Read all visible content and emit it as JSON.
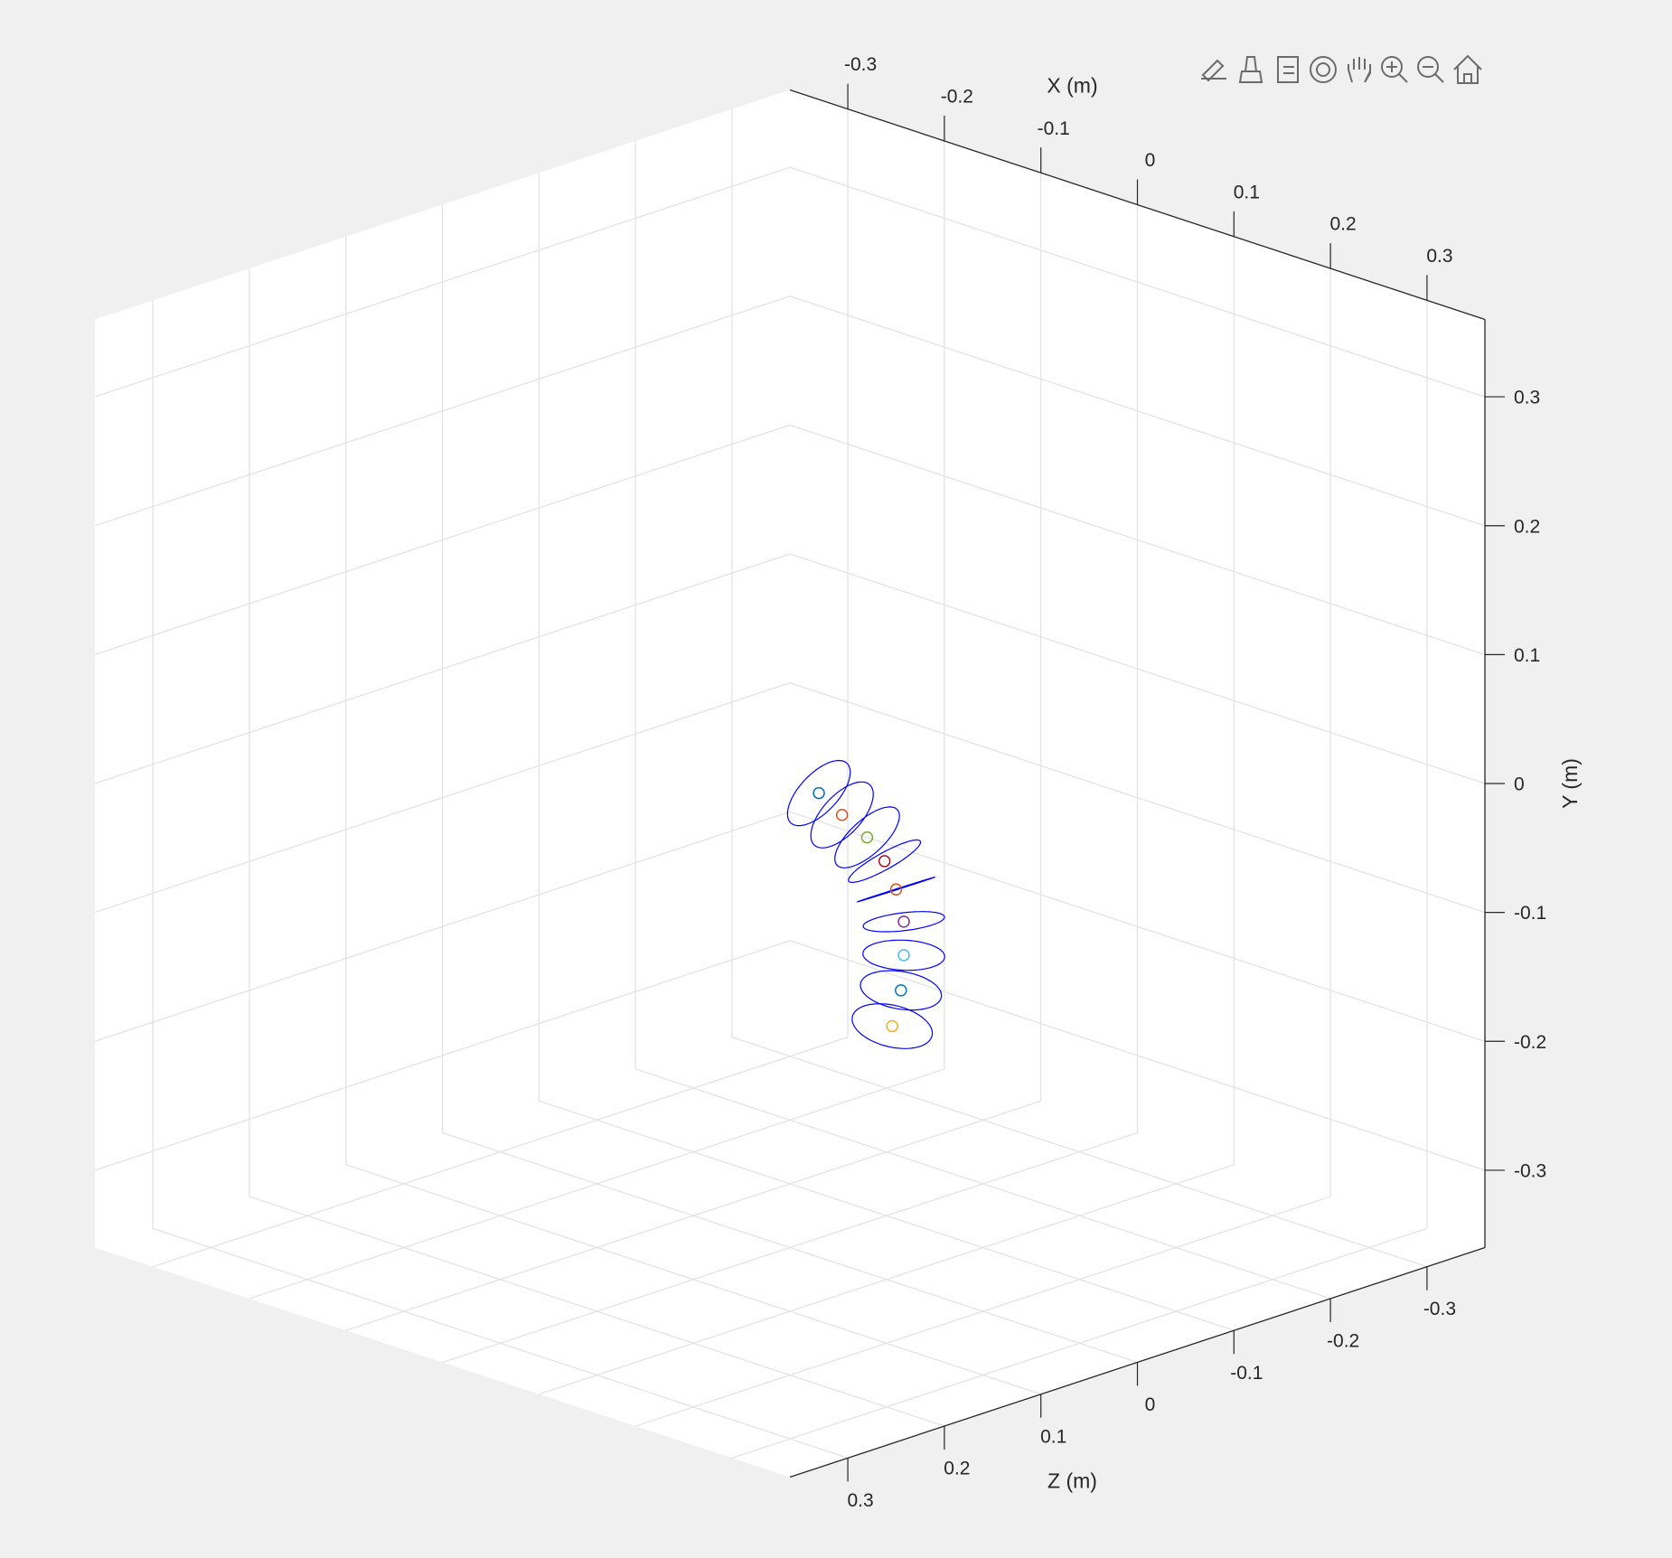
{
  "chart_data": {
    "type": "scatter3",
    "xlabel": "X (m)",
    "ylabel": "Y (m)",
    "zlabel": "Z (m)",
    "xlim": [
      -0.36,
      0.36
    ],
    "ylim": [
      -0.36,
      0.36
    ],
    "zlim": [
      -0.36,
      0.36
    ],
    "xticks": [
      -0.3,
      -0.2,
      -0.1,
      0,
      0.1,
      0.2,
      0.3
    ],
    "yticks": [
      -0.3,
      -0.2,
      -0.1,
      0,
      0.1,
      0.2,
      0.3
    ],
    "zticks": [
      -0.3,
      -0.2,
      -0.1,
      0,
      0.1,
      0.2,
      0.3
    ],
    "grid": true,
    "points": {
      "x": [
        0.03,
        0.054,
        0.08,
        0.098,
        0.11,
        0.118,
        0.118,
        0.115,
        0.106
      ],
      "y": [
        0.0,
        -0.011,
        -0.022,
        -0.036,
        -0.055,
        -0.078,
        -0.104,
        -0.132,
        -0.162
      ],
      "z": [
        0,
        0,
        0,
        0,
        0,
        0,
        0,
        0,
        0
      ],
      "colors": [
        "#0072BD",
        "#D95319",
        "#77AC30",
        "#A2142F",
        "#D95319",
        "#7E2F8E",
        "#4DBEEE",
        "#0072BD",
        "#EDB120"
      ]
    },
    "ring": {
      "radius": 0.03,
      "color": "#0000ff"
    }
  }
}
